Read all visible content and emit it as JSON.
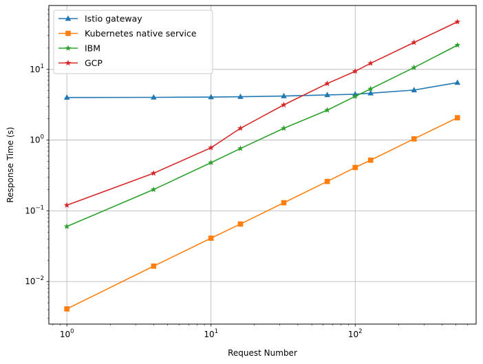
{
  "chart_data": {
    "type": "line",
    "title": "",
    "xlabel": "Request Number",
    "ylabel": "Response Time (s)",
    "xscale": "log",
    "yscale": "log",
    "xlim": [
      0.75,
      690
    ],
    "ylim": [
      0.0025,
      80
    ],
    "x_ticks": [
      {
        "value": 1,
        "base": "10",
        "exp": "0"
      },
      {
        "value": 10,
        "base": "10",
        "exp": "1"
      },
      {
        "value": 100,
        "base": "10",
        "exp": "2"
      }
    ],
    "y_ticks": [
      {
        "value": 0.01,
        "base": "10",
        "exp": "−2"
      },
      {
        "value": 0.1,
        "base": "10",
        "exp": "−1"
      },
      {
        "value": 1,
        "base": "10",
        "exp": "0"
      },
      {
        "value": 10,
        "base": "10",
        "exp": "1"
      }
    ],
    "grid": true,
    "legend_position": "top-left",
    "series": [
      {
        "name": "Istio gateway",
        "color": "#1f77b4",
        "marker": "triangle",
        "x": [
          1,
          4,
          10,
          16,
          32,
          64,
          100,
          128,
          256,
          512
        ],
        "y": [
          4.0,
          4.02,
          4.06,
          4.1,
          4.2,
          4.35,
          4.45,
          4.6,
          5.1,
          6.5
        ]
      },
      {
        "name": "Kubernetes native service",
        "color": "#ff7f0e",
        "marker": "square",
        "x": [
          1,
          4,
          10,
          16,
          32,
          64,
          100,
          128,
          256,
          512
        ],
        "y": [
          0.0041,
          0.0165,
          0.041,
          0.065,
          0.13,
          0.26,
          0.41,
          0.52,
          1.04,
          2.07
        ]
      },
      {
        "name": "IBM",
        "color": "#2ca02c",
        "marker": "star",
        "x": [
          1,
          4,
          10,
          16,
          32,
          64,
          100,
          128,
          256,
          512
        ],
        "y": [
          0.06,
          0.2,
          0.48,
          0.76,
          1.47,
          2.65,
          4.15,
          5.3,
          10.6,
          22.0
        ]
      },
      {
        "name": "GCP",
        "color": "#d62728",
        "marker": "star",
        "x": [
          1,
          4,
          10,
          16,
          32,
          64,
          100,
          128,
          256,
          512
        ],
        "y": [
          0.12,
          0.34,
          0.78,
          1.47,
          3.15,
          6.3,
          9.4,
          12.2,
          24.0,
          47.0
        ]
      }
    ]
  }
}
